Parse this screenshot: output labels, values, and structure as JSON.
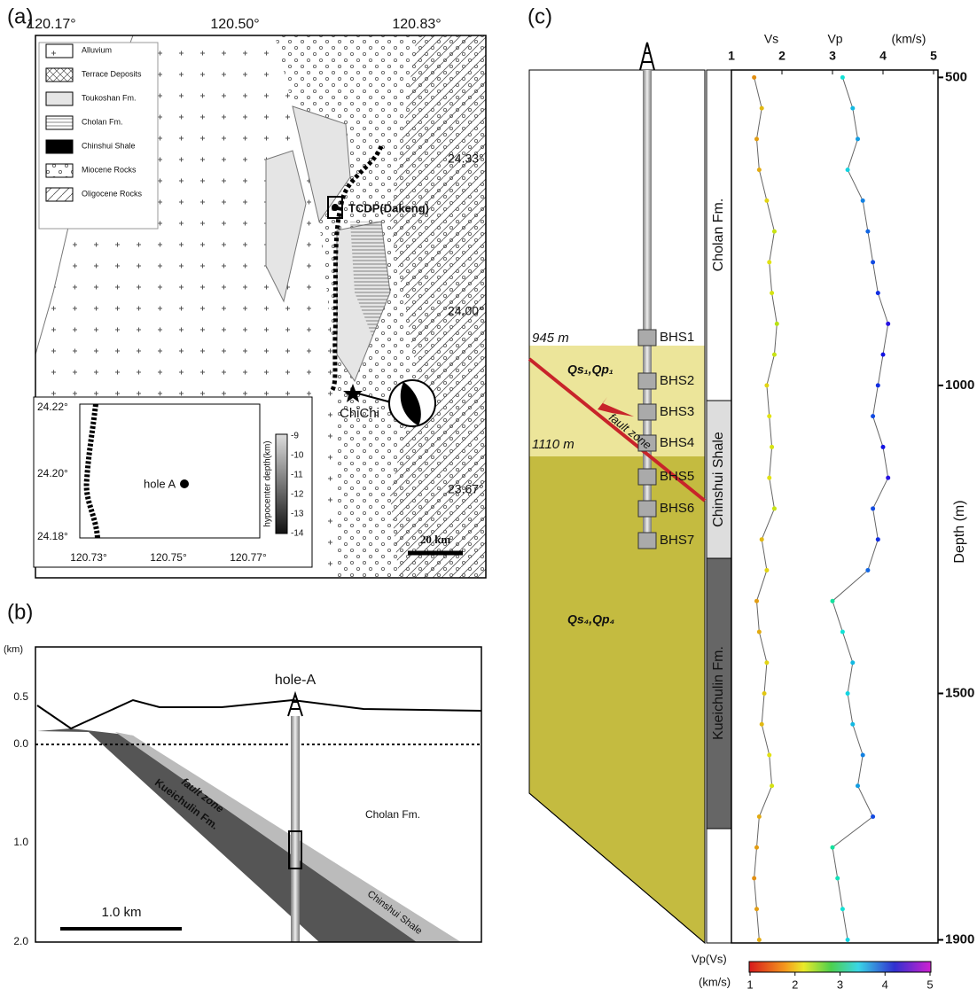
{
  "panels": {
    "a": {
      "label": "(a)",
      "lon_ticks": [
        "120.17°",
        "120.50°",
        "120.83°"
      ],
      "lat_ticks": [
        "24.33°",
        "24.00°",
        "23.67°"
      ],
      "legend": [
        "Alluvium",
        "Terrace Deposits",
        "Toukoshan Fm.",
        "Cholan Fm.",
        "Chinshui Shale",
        "Miocene Rocks",
        "Oligocene Rocks"
      ],
      "site": "TCDP(Dakeng)",
      "epicenter": "ChiChi",
      "scale": "20 km",
      "inset": {
        "lat_ticks": [
          "24.22°",
          "24.20°",
          "24.18°"
        ],
        "lon_ticks": [
          "120.73°",
          "120.75°",
          "120.77°"
        ],
        "hole": "hole A",
        "colorbar_label": "hypocenter depth(km)",
        "colorbar_ticks": [
          "-9",
          "-10",
          "-11",
          "-12",
          "-13",
          "-14"
        ]
      }
    },
    "b": {
      "label": "(b)",
      "unit": "(km)",
      "depth_ticks": [
        "0.5",
        "0.0",
        "1.0",
        "2.0"
      ],
      "hole": "hole-A",
      "formations": [
        "Cholan Fm.",
        "fault zone",
        "Kueichulin Fm.",
        "Chinshui Shale"
      ],
      "scale": "1.0 km"
    },
    "c": {
      "label": "(c)",
      "sensors": [
        "BHS1",
        "BHS2",
        "BHS3",
        "BHS4",
        "BHS5",
        "BHS6",
        "BHS7"
      ],
      "depth_marks": [
        "945 m",
        "1110 m"
      ],
      "zones": [
        "Qs₁,Qp₁",
        "fault zone",
        "Qs₄,Qp₄"
      ],
      "formations": [
        "Cholan Fm.",
        "Chinshui Shale",
        "Kueichulin Fm."
      ],
      "log": {
        "vs_label": "Vs",
        "vp_label": "Vp",
        "unit": "(km/s)",
        "y_label": "Depth (m)",
        "xlim": [
          1,
          5
        ],
        "xticks": [
          1,
          2,
          3,
          4,
          5
        ],
        "ylim": [
          488,
          1905
        ],
        "yticks": [
          500,
          1000,
          1500,
          1900
        ],
        "depth": [
          500,
          550,
          600,
          650,
          700,
          750,
          800,
          850,
          900,
          950,
          1000,
          1050,
          1100,
          1150,
          1200,
          1250,
          1300,
          1350,
          1400,
          1450,
          1500,
          1550,
          1600,
          1650,
          1700,
          1750,
          1800,
          1850,
          1900
        ],
        "vs": [
          1.45,
          1.6,
          1.5,
          1.55,
          1.7,
          1.85,
          1.75,
          1.8,
          1.9,
          1.85,
          1.7,
          1.75,
          1.8,
          1.75,
          1.85,
          1.6,
          1.7,
          1.5,
          1.55,
          1.7,
          1.65,
          1.6,
          1.75,
          1.8,
          1.55,
          1.5,
          1.45,
          1.5,
          1.55
        ],
        "vp": [
          3.2,
          3.4,
          3.5,
          3.3,
          3.6,
          3.7,
          3.8,
          3.9,
          4.1,
          4.0,
          3.9,
          3.8,
          4.0,
          4.1,
          3.8,
          3.9,
          3.7,
          3.0,
          3.2,
          3.4,
          3.3,
          3.4,
          3.6,
          3.5,
          3.8,
          3.0,
          3.1,
          3.2,
          3.3
        ]
      },
      "colorbar": {
        "label": "Vp(Vs)",
        "unit": "(km/s)",
        "ticks": [
          1,
          2,
          3,
          4,
          5
        ]
      }
    }
  }
}
